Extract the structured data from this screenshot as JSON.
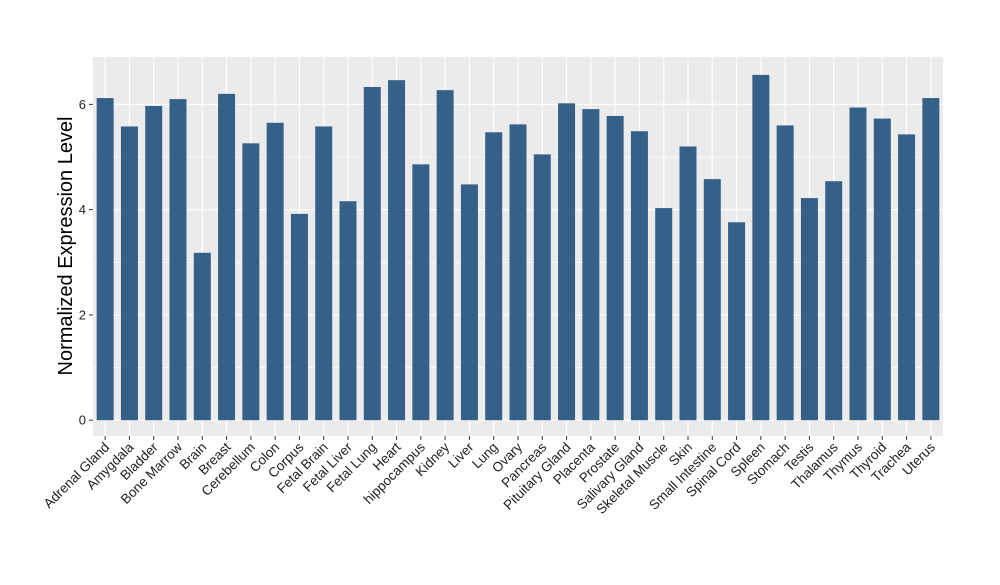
{
  "chart_data": {
    "type": "bar",
    "title": "",
    "xlabel": "",
    "ylabel": "Normalized Expression Level",
    "ylim": [
      -0.3,
      6.9
    ],
    "yticks": [
      0,
      2,
      4,
      6
    ],
    "grid": true,
    "colors": {
      "bar": "#356188",
      "panel": "#ebebeb",
      "grid": "#ffffff",
      "text": "#000000",
      "ticktext": "#222222"
    },
    "categories": [
      "Adrenal Gland",
      "Amygdala",
      "Bladder",
      "Bone Marrow",
      "Brain",
      "Breast",
      "Cerebellum",
      "Colon",
      "Corpus",
      "Fetal Brain",
      "Fetal Liver",
      "Fetal Lung",
      "Heart",
      "hippocampus",
      "Kidney",
      "Liver",
      "Lung",
      "Ovary",
      "Pancreas",
      "Pituitary Gland",
      "Placenta",
      "Prostate",
      "Salivary Gland",
      "Skeletal Muscle",
      "Skin",
      "Small Intestine",
      "Spinal Cord",
      "Spleen",
      "Stomach",
      "Testis",
      "Thalamus",
      "Thymus",
      "Thyroid",
      "Trachea",
      "Uterus"
    ],
    "values": [
      6.12,
      5.58,
      5.97,
      6.1,
      3.18,
      6.2,
      5.26,
      5.65,
      3.92,
      5.58,
      4.16,
      6.33,
      6.46,
      4.86,
      6.27,
      4.48,
      5.47,
      5.62,
      5.05,
      6.02,
      5.91,
      5.78,
      5.49,
      4.03,
      5.2,
      4.58,
      3.76,
      6.56,
      5.6,
      4.22,
      4.54,
      5.94,
      5.73,
      5.43,
      6.12
    ]
  }
}
